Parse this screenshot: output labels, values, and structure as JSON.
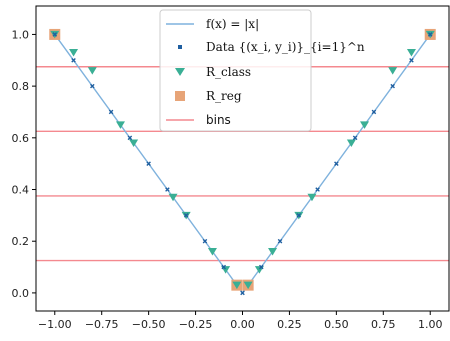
{
  "chart_data": {
    "type": "line",
    "title": "",
    "xlabel": "",
    "ylabel": "",
    "xlim": [
      -1.1,
      1.1
    ],
    "ylim": [
      -0.07,
      1.11
    ],
    "grid": false,
    "legend_position": "top-center",
    "x_ticks": [
      -1.0,
      -0.75,
      -0.5,
      -0.25,
      0.0,
      0.25,
      0.5,
      0.75,
      1.0
    ],
    "x_tick_labels": [
      "−1.00",
      "−0.75",
      "−0.50",
      "−0.25",
      "0.00",
      "0.25",
      "0.50",
      "0.75",
      "1.00"
    ],
    "y_ticks": [
      0.0,
      0.2,
      0.4,
      0.6,
      0.8,
      1.0
    ],
    "y_tick_labels": [
      "0.0",
      "0.2",
      "0.4",
      "0.6",
      "0.8",
      "1.0"
    ],
    "colors": {
      "function": "#7fb2dd",
      "data": "#1f5fa0",
      "class": "#3aaf95",
      "reg": "#e7a478",
      "bins": "#f4898f"
    },
    "function_line": {
      "name": "f(x) = |x|",
      "x": [
        -1.0,
        0.0,
        1.0
      ],
      "y": [
        1.0,
        0.0,
        1.0
      ]
    },
    "data_points": {
      "name": "Data {(x_i, y_i)}_{i=1}^n",
      "x": [
        -1.0,
        -0.9,
        -0.8,
        -0.7,
        -0.6,
        -0.5,
        -0.4,
        -0.3,
        -0.2,
        -0.1,
        0.0,
        0.1,
        0.2,
        0.3,
        0.4,
        0.5,
        0.6,
        0.7,
        0.8,
        0.9,
        1.0
      ],
      "y": [
        1.0,
        0.9,
        0.8,
        0.7,
        0.6,
        0.5,
        0.4,
        0.3,
        0.2,
        0.1,
        0.0,
        0.1,
        0.2,
        0.3,
        0.4,
        0.5,
        0.6,
        0.7,
        0.8,
        0.9,
        1.0
      ]
    },
    "r_class": {
      "name": "R_class",
      "x": [
        -1.0,
        -0.9,
        -0.8,
        -0.65,
        -0.58,
        -0.37,
        -0.3,
        -0.16,
        -0.09,
        -0.03,
        0.03,
        0.09,
        0.16,
        0.3,
        0.37,
        0.58,
        0.65,
        0.8,
        0.9,
        1.0
      ],
      "y": [
        1.0,
        0.93,
        0.86,
        0.65,
        0.58,
        0.37,
        0.3,
        0.16,
        0.09,
        0.03,
        0.03,
        0.09,
        0.16,
        0.3,
        0.37,
        0.58,
        0.65,
        0.86,
        0.93,
        1.0
      ]
    },
    "r_reg": {
      "name": "R_reg",
      "x": [
        -1.0,
        -0.03,
        0.03,
        1.0
      ],
      "y": [
        1.0,
        0.03,
        0.03,
        1.0
      ]
    },
    "bins": {
      "name": "bins",
      "y": [
        0.125,
        0.375,
        0.625,
        0.875
      ]
    }
  }
}
